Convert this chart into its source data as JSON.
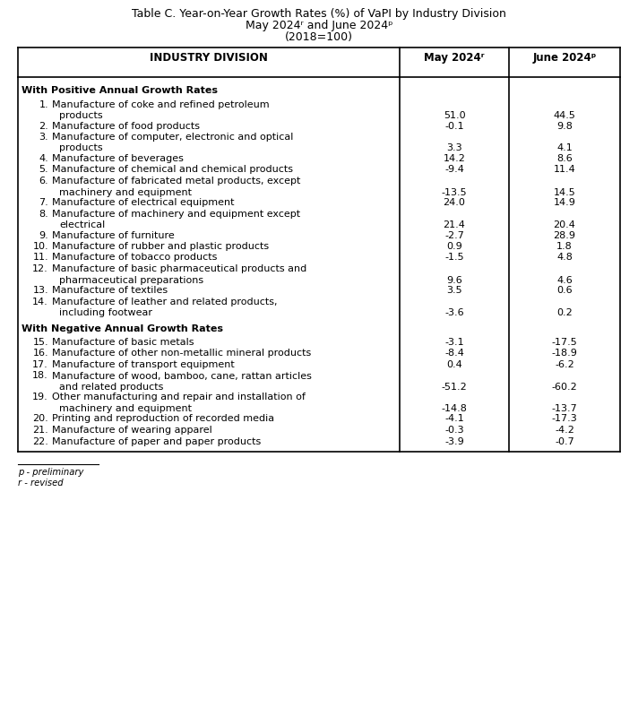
{
  "title_line1": "Table C. Year-on-Year Growth Rates (%) of VaPI by Industry Division",
  "title_line2": "May 2024ʳ and June 2024ᵖ",
  "title_line3": "(2018=100)",
  "col_header1": "INDUSTRY DIVISION",
  "col_header2": "May 2024ʳ",
  "col_header3": "June 2024ᵖ",
  "section1_header": "With Positive Annual Growth Rates",
  "section2_header": "With Negative Annual Growth Rates",
  "rows": [
    {
      "num": "1.",
      "label_line1": "Manufacture of coke and refined petroleum",
      "label_line2": "products",
      "may": "51.0",
      "june": "44.5"
    },
    {
      "num": "2.",
      "label_line1": "Manufacture of food products",
      "label_line2": null,
      "may": "-0.1",
      "june": "9.8"
    },
    {
      "num": "3.",
      "label_line1": "Manufacture of computer, electronic and optical",
      "label_line2": "products",
      "may": "3.3",
      "june": "4.1"
    },
    {
      "num": "4.",
      "label_line1": "Manufacture of beverages",
      "label_line2": null,
      "may": "14.2",
      "june": "8.6"
    },
    {
      "num": "5.",
      "label_line1": "Manufacture of chemical and chemical products",
      "label_line2": null,
      "may": "-9.4",
      "june": "11.4"
    },
    {
      "num": "6.",
      "label_line1": "Manufacture of fabricated metal products, except",
      "label_line2": "machinery and equipment",
      "may": "-13.5",
      "june": "14.5"
    },
    {
      "num": "7.",
      "label_line1": "Manufacture of electrical equipment",
      "label_line2": null,
      "may": "24.0",
      "june": "14.9"
    },
    {
      "num": "8.",
      "label_line1": "Manufacture of machinery and equipment except",
      "label_line2": "electrical",
      "may": "21.4",
      "june": "20.4"
    },
    {
      "num": "9.",
      "label_line1": "Manufacture of furniture",
      "label_line2": null,
      "may": "-2.7",
      "june": "28.9"
    },
    {
      "num": "10.",
      "label_line1": "Manufacture of rubber and plastic products",
      "label_line2": null,
      "may": "0.9",
      "june": "1.8"
    },
    {
      "num": "11.",
      "label_line1": "Manufacture of tobacco products",
      "label_line2": null,
      "may": "-1.5",
      "june": "4.8"
    },
    {
      "num": "12.",
      "label_line1": "Manufacture of basic pharmaceutical products and",
      "label_line2": "pharmaceutical preparations",
      "may": "9.6",
      "june": "4.6"
    },
    {
      "num": "13.",
      "label_line1": "Manufacture of textiles",
      "label_line2": null,
      "may": "3.5",
      "june": "0.6"
    },
    {
      "num": "14.",
      "label_line1": "Manufacture of leather and related products,",
      "label_line2": "including footwear",
      "may": "-3.6",
      "june": "0.2"
    },
    {
      "num": "15.",
      "label_line1": "Manufacture of basic metals",
      "label_line2": null,
      "may": "-3.1",
      "june": "-17.5"
    },
    {
      "num": "16.",
      "label_line1": "Manufacture of other non-metallic mineral products",
      "label_line2": null,
      "may": "-8.4",
      "june": "-18.9"
    },
    {
      "num": "17.",
      "label_line1": "Manufacture of transport equipment",
      "label_line2": null,
      "may": "0.4",
      "june": "-6.2"
    },
    {
      "num": "18.",
      "label_line1": "Manufacture of wood, bamboo, cane, rattan articles",
      "label_line2": "and related products",
      "may": "-51.2",
      "june": "-60.2"
    },
    {
      "num": "19.",
      "label_line1": "Other manufacturing and repair and installation of",
      "label_line2": "machinery and equipment",
      "may": "-14.8",
      "june": "-13.7"
    },
    {
      "num": "20.",
      "label_line1": "Printing and reproduction of recorded media",
      "label_line2": null,
      "may": "-4.1",
      "june": "-17.3"
    },
    {
      "num": "21.",
      "label_line1": "Manufacture of wearing apparel",
      "label_line2": null,
      "may": "-0.3",
      "june": "-4.2"
    },
    {
      "num": "22.",
      "label_line1": "Manufacture of paper and paper products",
      "label_line2": null,
      "may": "-3.9",
      "june": "-0.7"
    }
  ],
  "footnote1": "p - preliminary",
  "footnote2": "r - revised",
  "bg_color": "#ffffff",
  "border_color": "#000000",
  "font_size_title": 9.0,
  "font_size_header": 8.5,
  "font_size_body": 8.0,
  "font_size_footnote": 7.2
}
